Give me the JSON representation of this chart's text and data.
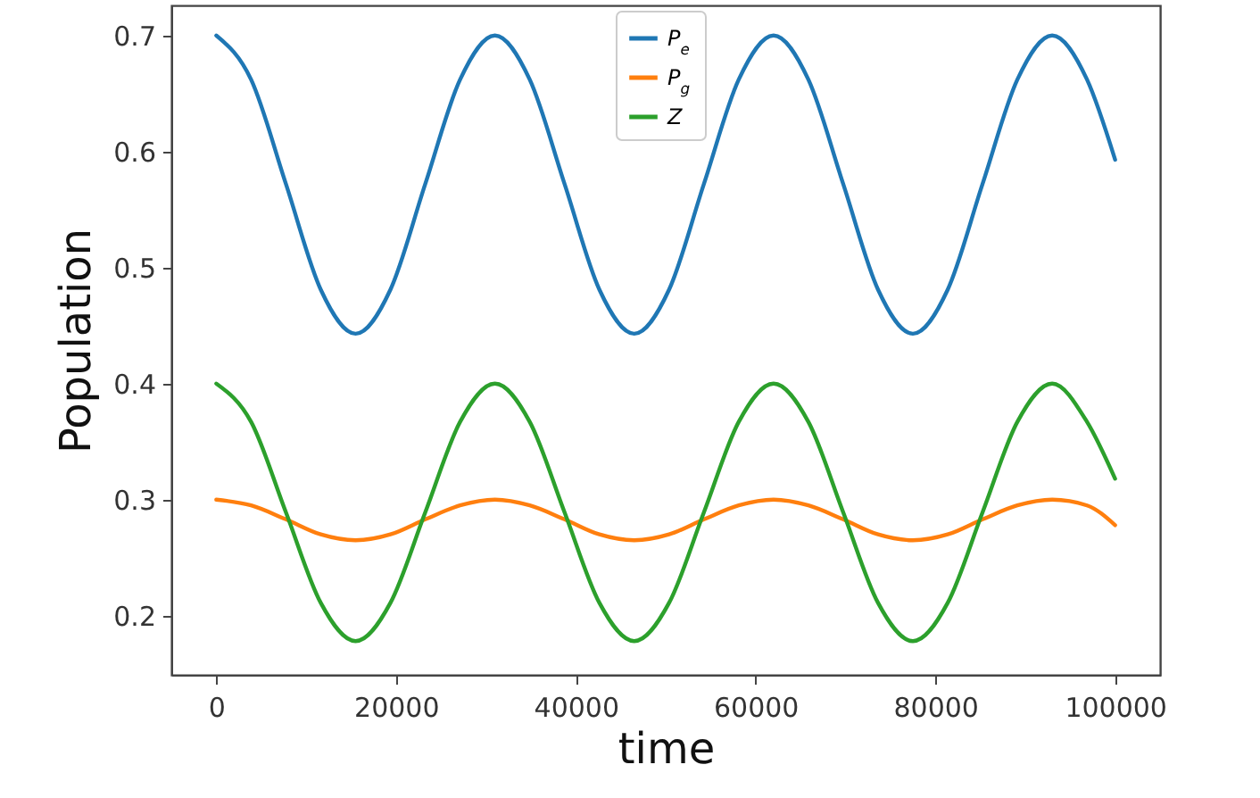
{
  "chart_data": {
    "type": "line",
    "xlabel": "time",
    "ylabel": "Population",
    "x": [
      0,
      3875,
      7750,
      11625,
      15500,
      19375,
      23250,
      27125,
      31000,
      34875,
      38750,
      42625,
      46500,
      50375,
      54250,
      58125,
      62000,
      65875,
      69750,
      73625,
      77500,
      81375,
      85250,
      89125,
      93000,
      96875,
      100000
    ],
    "series": [
      {
        "name": "P$_{e}$",
        "color": "#1f77b4",
        "values": [
          0.7,
          0.662,
          0.572,
          0.481,
          0.443,
          0.481,
          0.572,
          0.662,
          0.7,
          0.662,
          0.572,
          0.481,
          0.443,
          0.481,
          0.572,
          0.662,
          0.7,
          0.662,
          0.572,
          0.481,
          0.443,
          0.481,
          0.572,
          0.662,
          0.7,
          0.662,
          0.593
        ]
      },
      {
        "name": "P$_{g}$",
        "color": "#ff7f0e",
        "values": [
          0.3,
          0.295,
          0.283,
          0.27,
          0.265,
          0.27,
          0.283,
          0.295,
          0.3,
          0.295,
          0.283,
          0.27,
          0.265,
          0.27,
          0.283,
          0.295,
          0.3,
          0.295,
          0.283,
          0.27,
          0.265,
          0.27,
          0.283,
          0.295,
          0.3,
          0.295,
          0.278
        ]
      },
      {
        "name": "Z",
        "color": "#2ca02c",
        "values": [
          0.4,
          0.367,
          0.289,
          0.211,
          0.178,
          0.211,
          0.289,
          0.367,
          0.4,
          0.367,
          0.289,
          0.211,
          0.178,
          0.211,
          0.289,
          0.367,
          0.4,
          0.367,
          0.289,
          0.211,
          0.178,
          0.211,
          0.289,
          0.367,
          0.4,
          0.367,
          0.318
        ]
      }
    ],
    "xlim": [
      -5000,
      105000
    ],
    "xticks": [
      0,
      20000,
      40000,
      60000,
      80000,
      100000
    ],
    "ylim": [
      0.149,
      0.726
    ],
    "yticks": [
      0.2,
      0.3,
      0.4,
      0.5,
      0.6,
      0.7
    ],
    "grid": false,
    "legend": "top",
    "marker": "none",
    "line_style": "solid"
  }
}
